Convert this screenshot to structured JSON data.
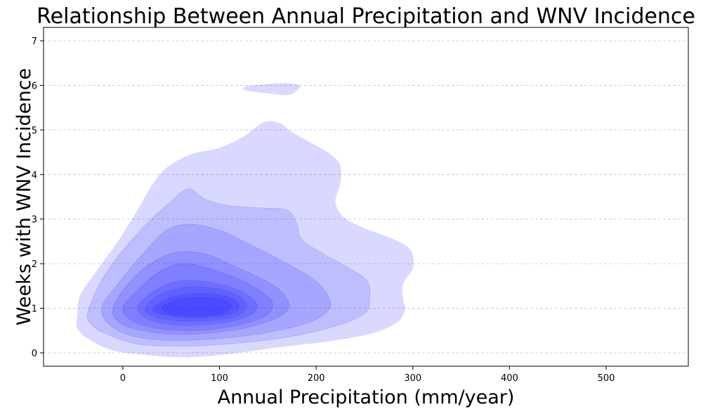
{
  "chart_data": {
    "type": "kde-contour",
    "title": "Relationship Between Annual Precipitation and WNV Incidence",
    "xlabel": "Annual Precipitation (mm/year)",
    "ylabel": "Weeks with WNV Incidence",
    "xlim": [
      -82,
      585
    ],
    "ylim": [
      -0.3,
      7.3
    ],
    "xticks": [
      0,
      100,
      200,
      300,
      400,
      500
    ],
    "yticks": [
      0,
      1,
      2,
      3,
      4,
      5,
      6,
      7
    ],
    "grid": {
      "axis": "y",
      "style": "dashed"
    },
    "fill_color": "#0000ff",
    "levels": [
      {
        "points": [
          [
            -47,
            0.85
          ],
          [
            -44,
            1.3
          ],
          [
            -25,
            1.9
          ],
          [
            -5,
            2.5
          ],
          [
            15,
            3.2
          ],
          [
            30,
            3.75
          ],
          [
            45,
            4.15
          ],
          [
            70,
            4.45
          ],
          [
            100,
            4.6
          ],
          [
            125,
            4.85
          ],
          [
            140,
            5.1
          ],
          [
            150,
            5.2
          ],
          [
            163,
            5.15
          ],
          [
            175,
            4.95
          ],
          [
            200,
            4.65
          ],
          [
            215,
            4.45
          ],
          [
            225,
            4.2
          ],
          [
            225,
            3.8
          ],
          [
            220,
            3.4
          ],
          [
            228,
            3.05
          ],
          [
            250,
            2.8
          ],
          [
            280,
            2.55
          ],
          [
            298,
            2.3
          ],
          [
            300,
            1.9
          ],
          [
            290,
            1.55
          ],
          [
            290,
            1.2
          ],
          [
            292,
            1.0
          ],
          [
            285,
            0.7
          ],
          [
            260,
            0.45
          ],
          [
            220,
            0.28
          ],
          [
            160,
            0.12
          ],
          [
            100,
            -0.05
          ],
          [
            60,
            -0.1
          ],
          [
            25,
            -0.05
          ],
          [
            -10,
            0.05
          ],
          [
            -35,
            0.3
          ],
          [
            -47,
            0.55
          ]
        ],
        "alpha": 0.15
      },
      {
        "points": [
          [
            125,
            5.95
          ],
          [
            135,
            6.0
          ],
          [
            165,
            6.05
          ],
          [
            183,
            6.0
          ],
          [
            178,
            5.85
          ],
          [
            170,
            5.78
          ],
          [
            150,
            5.82
          ],
          [
            128,
            5.88
          ]
        ],
        "alpha": 0.15
      },
      {
        "points": [
          [
            -35,
            1.0
          ],
          [
            -20,
            1.7
          ],
          [
            0,
            2.3
          ],
          [
            25,
            2.9
          ],
          [
            50,
            3.4
          ],
          [
            68,
            3.68
          ],
          [
            85,
            3.45
          ],
          [
            110,
            3.3
          ],
          [
            145,
            3.25
          ],
          [
            170,
            3.2
          ],
          [
            180,
            2.9
          ],
          [
            185,
            2.55
          ],
          [
            205,
            2.25
          ],
          [
            230,
            1.95
          ],
          [
            253,
            1.6
          ],
          [
            255,
            1.1
          ],
          [
            248,
            0.85
          ],
          [
            220,
            0.6
          ],
          [
            170,
            0.35
          ],
          [
            110,
            0.2
          ],
          [
            60,
            0.15
          ],
          [
            15,
            0.2
          ],
          [
            -20,
            0.45
          ],
          [
            -35,
            0.7
          ]
        ],
        "alpha": 0.12
      },
      {
        "points": [
          [
            -22,
            1.0
          ],
          [
            -5,
            1.55
          ],
          [
            20,
            2.2
          ],
          [
            45,
            2.75
          ],
          [
            70,
            2.88
          ],
          [
            100,
            2.75
          ],
          [
            130,
            2.45
          ],
          [
            170,
            2.0
          ],
          [
            200,
            1.6
          ],
          [
            215,
            1.1
          ],
          [
            200,
            0.75
          ],
          [
            165,
            0.52
          ],
          [
            115,
            0.35
          ],
          [
            60,
            0.28
          ],
          [
            15,
            0.35
          ],
          [
            -12,
            0.6
          ]
        ],
        "alpha": 0.12
      },
      {
        "points": [
          [
            -10,
            1.0
          ],
          [
            0,
            1.4
          ],
          [
            25,
            1.95
          ],
          [
            55,
            2.25
          ],
          [
            85,
            2.22
          ],
          [
            110,
            2.0
          ],
          [
            135,
            1.75
          ],
          [
            160,
            1.45
          ],
          [
            172,
            1.1
          ],
          [
            165,
            0.85
          ],
          [
            135,
            0.6
          ],
          [
            95,
            0.45
          ],
          [
            50,
            0.42
          ],
          [
            10,
            0.55
          ],
          [
            -7,
            0.75
          ]
        ],
        "alpha": 0.12
      },
      {
        "points": [
          [
            0,
            1.0
          ],
          [
            15,
            1.4
          ],
          [
            40,
            1.85
          ],
          [
            65,
            2.0
          ],
          [
            95,
            1.85
          ],
          [
            125,
            1.6
          ],
          [
            148,
            1.3
          ],
          [
            155,
            1.05
          ],
          [
            145,
            0.8
          ],
          [
            115,
            0.6
          ],
          [
            75,
            0.5
          ],
          [
            35,
            0.55
          ],
          [
            10,
            0.72
          ]
        ],
        "alpha": 0.12
      },
      {
        "points": [
          [
            15,
            1.0
          ],
          [
            30,
            1.35
          ],
          [
            55,
            1.6
          ],
          [
            85,
            1.6
          ],
          [
            115,
            1.45
          ],
          [
            135,
            1.2
          ],
          [
            138,
            0.98
          ],
          [
            125,
            0.78
          ],
          [
            95,
            0.65
          ],
          [
            60,
            0.62
          ],
          [
            30,
            0.72
          ]
        ],
        "alpha": 0.12
      },
      {
        "points": [
          [
            23,
            1.0
          ],
          [
            38,
            1.3
          ],
          [
            65,
            1.47
          ],
          [
            95,
            1.45
          ],
          [
            120,
            1.28
          ],
          [
            128,
            1.05
          ],
          [
            118,
            0.83
          ],
          [
            90,
            0.72
          ],
          [
            55,
            0.72
          ],
          [
            32,
            0.82
          ]
        ],
        "alpha": 0.12
      },
      {
        "points": [
          [
            32,
            1.0
          ],
          [
            48,
            1.22
          ],
          [
            75,
            1.33
          ],
          [
            105,
            1.28
          ],
          [
            120,
            1.1
          ],
          [
            115,
            0.9
          ],
          [
            90,
            0.8
          ],
          [
            60,
            0.8
          ],
          [
            38,
            0.88
          ]
        ],
        "alpha": 0.12
      },
      {
        "points": [
          [
            40,
            1.0
          ],
          [
            55,
            1.18
          ],
          [
            80,
            1.24
          ],
          [
            105,
            1.17
          ],
          [
            112,
            1.02
          ],
          [
            100,
            0.87
          ],
          [
            75,
            0.82
          ],
          [
            50,
            0.87
          ]
        ],
        "alpha": 0.13
      }
    ]
  }
}
